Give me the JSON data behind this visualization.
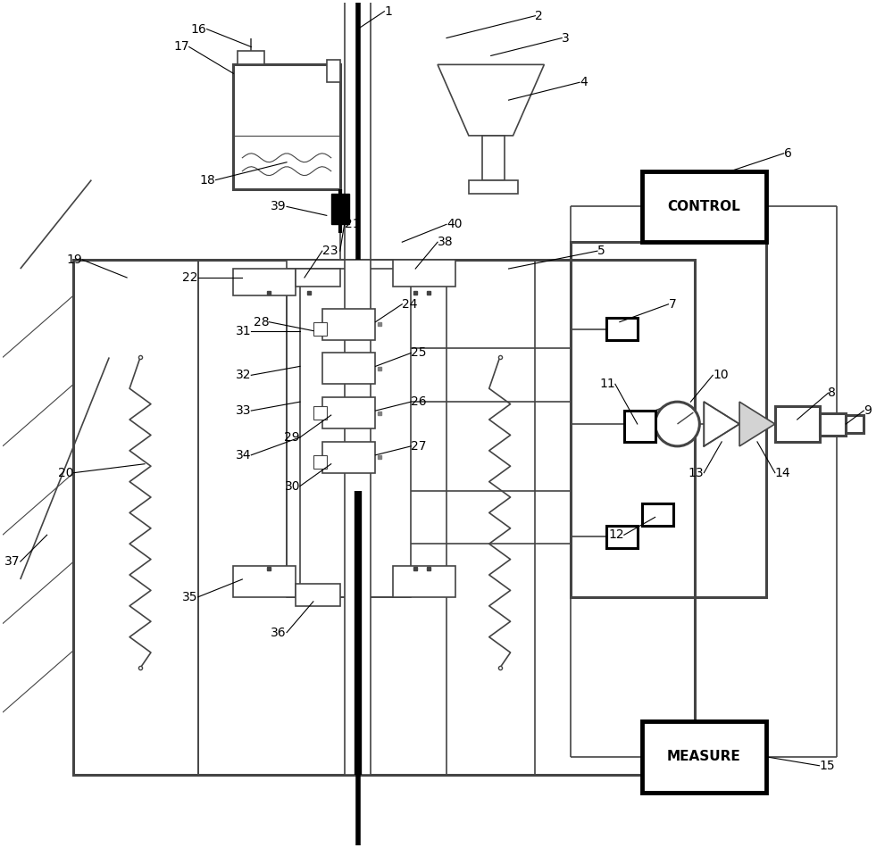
{
  "lc": "#444444",
  "lw": 1.2,
  "lw2": 2.2,
  "lw3": 3.5,
  "fs": 10,
  "ctrl_color": "#000000",
  "meas_color": "#000000"
}
